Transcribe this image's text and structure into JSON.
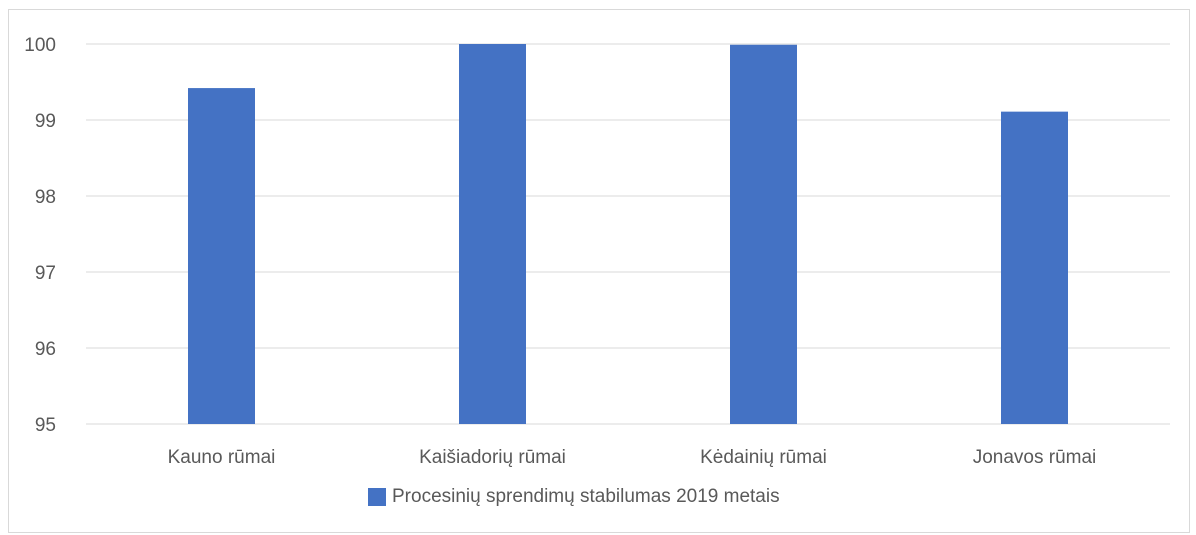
{
  "chart_data": {
    "type": "bar",
    "categories": [
      "Kauno rūmai",
      "Kaišiadorių rūmai",
      "Kėdainių rūmai",
      "Jonavos rūmai"
    ],
    "series": [
      {
        "name": "Procesinių sprendimų stabilumas 2019 metais",
        "values": [
          99.42,
          100,
          99.99,
          99.11
        ],
        "color": "#4472c4"
      }
    ],
    "yticks": [
      "95",
      "96",
      "97",
      "98",
      "99",
      "100"
    ],
    "ylim": [
      95,
      100
    ],
    "grid": true,
    "legend_position": "bottom"
  }
}
